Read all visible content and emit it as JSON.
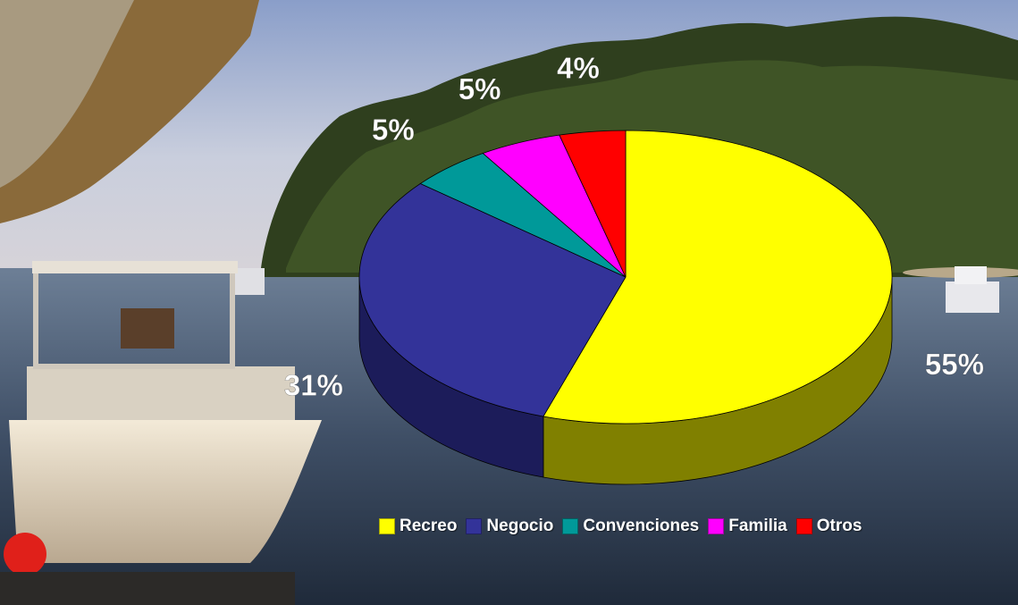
{
  "chart_data": {
    "type": "pie",
    "three_d": true,
    "categories": [
      "Recreo",
      "Negocio",
      "Convenciones",
      "Familia",
      "Otros"
    ],
    "values": [
      55,
      31,
      5,
      5,
      4
    ],
    "labels": [
      "55%",
      "31%",
      "5%",
      "5%",
      "4%"
    ],
    "colors": [
      "#ffff00",
      "#333399",
      "#009999",
      "#ff00ff",
      "#ff0000"
    ],
    "side_colors": [
      "#808000",
      "#1c1c5a",
      "#005555",
      "#880088",
      "#880000"
    ],
    "legend_position": "bottom",
    "background": "photo: boat moored at a tropical island jetty"
  }
}
